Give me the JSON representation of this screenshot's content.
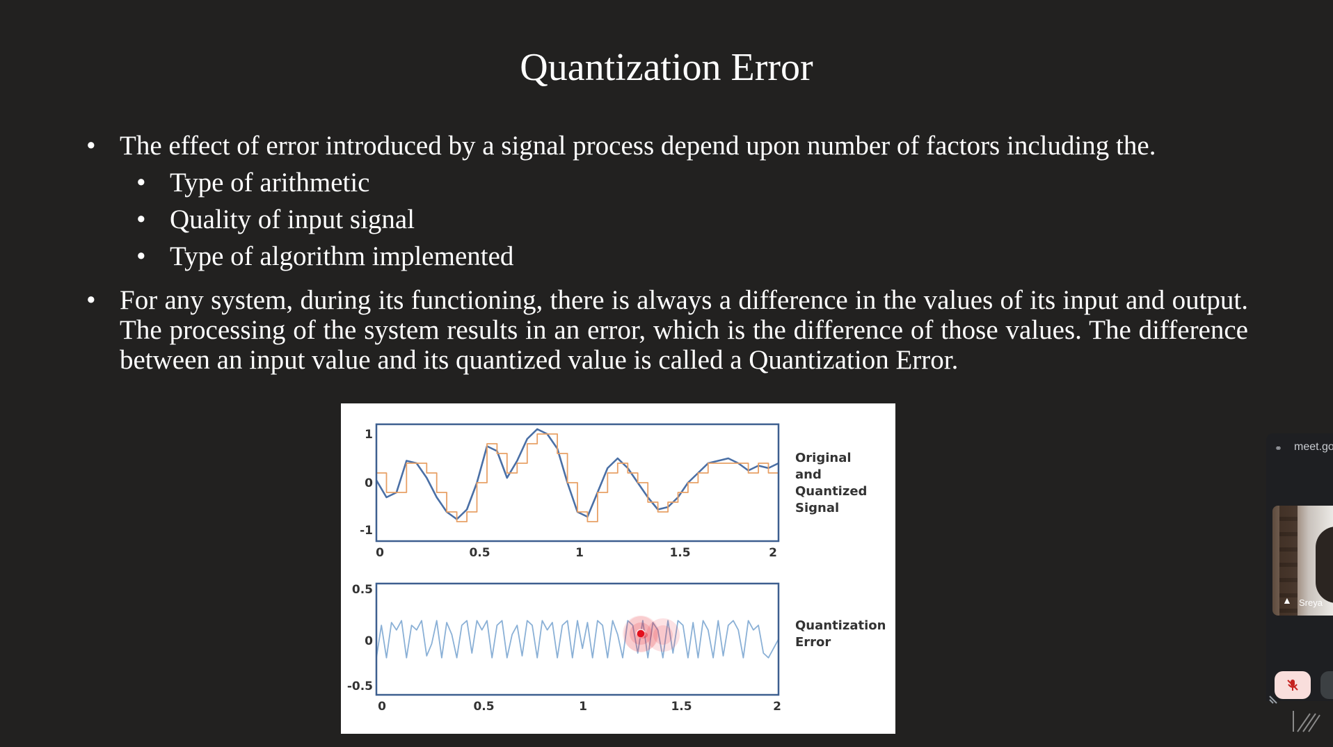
{
  "slide": {
    "title": "Quantization Error",
    "bullet1": "The effect of error introduced by a signal process depend upon number of factors including the.",
    "sub_bullets": [
      "Type of arithmetic",
      "Quality of input signal",
      "Type of algorithm implemented"
    ],
    "bullet2": "For any system, during its functioning, there is always a difference in the values of its input and output. The processing of the system results in an error, which is the difference of those values. The difference between an input value and its quantized value is called a Quantization Error."
  },
  "chart_data": [
    {
      "type": "line",
      "legend_text": [
        "Original",
        "and",
        "Quantized",
        "Signal"
      ],
      "x_ticks": [
        "0",
        "0.5",
        "1",
        "1.5",
        "2"
      ],
      "y_ticks": [
        "1",
        "0",
        "-1"
      ],
      "xlim": [
        0,
        2
      ],
      "ylim": [
        -1.2,
        1.2
      ],
      "series": [
        {
          "color": "#4a6fa5",
          "x": [
            0,
            0.05,
            0.1,
            0.15,
            0.2,
            0.25,
            0.3,
            0.35,
            0.4,
            0.45,
            0.5,
            0.55,
            0.6,
            0.65,
            0.7,
            0.75,
            0.8,
            0.85,
            0.9,
            0.95,
            1.0,
            1.05,
            1.1,
            1.15,
            1.2,
            1.25,
            1.3,
            1.35,
            1.4,
            1.45,
            1.5,
            1.55,
            1.6,
            1.65,
            1.7,
            1.75,
            1.8,
            1.85,
            1.9,
            1.95,
            2.0
          ],
          "values": [
            0.05,
            -0.3,
            -0.2,
            0.45,
            0.4,
            0.1,
            -0.3,
            -0.6,
            -0.75,
            -0.55,
            0.0,
            0.75,
            0.65,
            0.1,
            0.45,
            0.9,
            1.1,
            1.0,
            0.7,
            0.0,
            -0.6,
            -0.7,
            -0.2,
            0.3,
            0.5,
            0.3,
            0.0,
            -0.3,
            -0.55,
            -0.5,
            -0.3,
            0.0,
            0.2,
            0.4,
            0.45,
            0.5,
            0.4,
            0.25,
            0.35,
            0.3,
            0.4
          ]
        },
        {
          "color": "#e8a066",
          "x": [
            0,
            0.05,
            0.1,
            0.15,
            0.2,
            0.25,
            0.3,
            0.35,
            0.4,
            0.45,
            0.5,
            0.55,
            0.6,
            0.65,
            0.7,
            0.75,
            0.8,
            0.85,
            0.9,
            0.95,
            1.0,
            1.05,
            1.1,
            1.15,
            1.2,
            1.25,
            1.3,
            1.35,
            1.4,
            1.45,
            1.5,
            1.55,
            1.6,
            1.65,
            1.7,
            1.75,
            1.8,
            1.85,
            1.9,
            1.95,
            2.0
          ],
          "values": [
            0.2,
            -0.2,
            -0.2,
            0.4,
            0.4,
            0.2,
            -0.2,
            -0.6,
            -0.8,
            -0.6,
            0.0,
            0.8,
            0.6,
            0.2,
            0.4,
            0.8,
            1.0,
            1.0,
            0.6,
            0.0,
            -0.6,
            -0.8,
            -0.2,
            0.2,
            0.4,
            0.2,
            0.0,
            -0.4,
            -0.6,
            -0.4,
            -0.2,
            0.0,
            0.2,
            0.4,
            0.4,
            0.4,
            0.4,
            0.2,
            0.4,
            0.2,
            0.4
          ]
        }
      ]
    },
    {
      "type": "line",
      "legend_text": [
        "Quantization",
        "Error"
      ],
      "x_ticks": [
        "0",
        "0.5",
        "1",
        "1.5",
        "2"
      ],
      "y_ticks": [
        "0.5",
        "0",
        "-0.5"
      ],
      "xlim": [
        0,
        2
      ],
      "ylim": [
        -0.6,
        0.6
      ],
      "series": [
        {
          "color": "#8ab0d6",
          "x": [
            0,
            0.025,
            0.05,
            0.075,
            0.1,
            0.125,
            0.15,
            0.175,
            0.2,
            0.225,
            0.25,
            0.275,
            0.3,
            0.325,
            0.35,
            0.375,
            0.4,
            0.425,
            0.45,
            0.475,
            0.5,
            0.525,
            0.55,
            0.575,
            0.6,
            0.625,
            0.65,
            0.675,
            0.7,
            0.725,
            0.75,
            0.775,
            0.8,
            0.825,
            0.85,
            0.875,
            0.9,
            0.925,
            0.95,
            0.975,
            1.0,
            1.025,
            1.05,
            1.075,
            1.1,
            1.125,
            1.15,
            1.175,
            1.2,
            1.225,
            1.25,
            1.275,
            1.3,
            1.325,
            1.35,
            1.375,
            1.4,
            1.425,
            1.45,
            1.475,
            1.5,
            1.525,
            1.55,
            1.575,
            1.6,
            1.625,
            1.65,
            1.675,
            1.7,
            1.725,
            1.75,
            1.775,
            1.8,
            1.825,
            1.85,
            1.875,
            1.9,
            1.925,
            1.95,
            1.975,
            2.0
          ],
          "values": [
            -0.2,
            0.15,
            -0.2,
            0.18,
            0.1,
            0.2,
            -0.2,
            0.15,
            0.1,
            0.2,
            -0.18,
            -0.05,
            0.2,
            -0.2,
            0.18,
            0.05,
            -0.2,
            0.15,
            0.2,
            -0.15,
            0.2,
            0.1,
            0.2,
            -0.2,
            0.15,
            0.2,
            -0.2,
            0.05,
            0.15,
            -0.18,
            0.2,
            0.15,
            -0.2,
            0.2,
            0.1,
            0.18,
            -0.2,
            0.15,
            0.2,
            -0.2,
            0.2,
            -0.1,
            0.18,
            -0.2,
            0.2,
            0.15,
            -0.2,
            0.2,
            0.05,
            -0.2,
            0.2,
            0.15,
            -0.15,
            0.2,
            -0.2,
            0.18,
            0.1,
            -0.2,
            0.2,
            -0.15,
            0.2,
            0.15,
            -0.2,
            0.18,
            -0.2,
            0.2,
            0.1,
            -0.2,
            0.2,
            -0.18,
            0.15,
            0.2,
            0.1,
            -0.2,
            0.2,
            0.1,
            0.15,
            -0.15,
            -0.2,
            -0.1,
            0.0
          ]
        }
      ]
    }
  ],
  "meet": {
    "url": "meet.go",
    "participant_name": "Sreya"
  },
  "colors": {
    "slide_bg": "#222120",
    "mic_off_bg": "#f9dedc",
    "mic_off_icon": "#c5221f",
    "laser_pointer": "#e3101e"
  }
}
